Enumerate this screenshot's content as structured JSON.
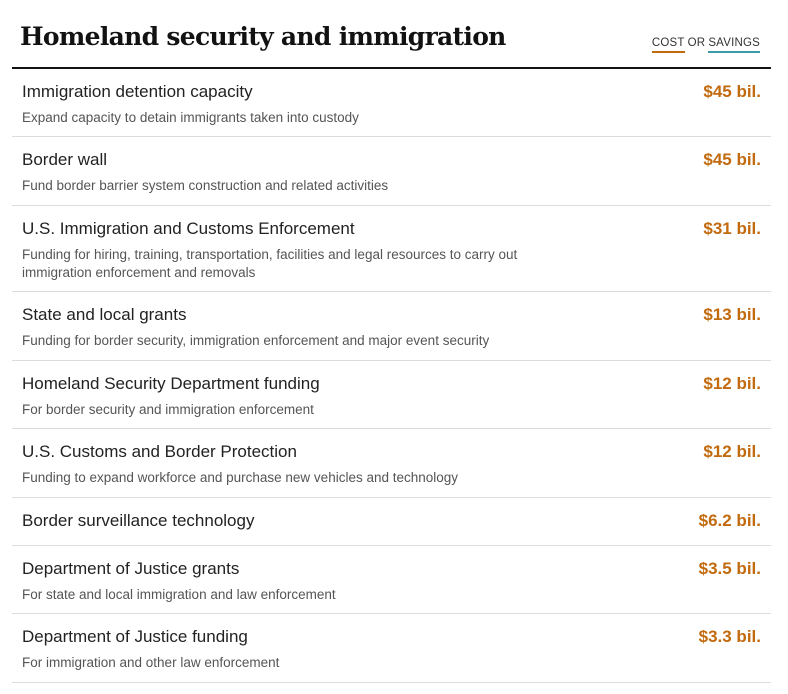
{
  "header": {
    "title": "Homeland security and immigration",
    "legend": {
      "cost_label": "COST",
      "or_label": "OR",
      "savings_label": "SAVINGS",
      "cost_color": "#c26a0e",
      "savings_color": "#3a9aa8"
    }
  },
  "colors": {
    "amount": "#c26a0e"
  },
  "items": [
    {
      "name": "Immigration detention capacity",
      "description": "Expand capacity to detain immigrants taken into custody",
      "amount": "$45 bil."
    },
    {
      "name": "Border wall",
      "description": "Fund border barrier system construction and related activities",
      "amount": "$45 bil."
    },
    {
      "name": "U.S. Immigration and Customs Enforcement",
      "description": "Funding for hiring, training, transportation, facilities and legal resources to carry out immigration enforcement and removals",
      "amount": "$31 bil."
    },
    {
      "name": "State and local grants",
      "description": "Funding for border security, immigration enforcement and major event security",
      "amount": "$13 bil."
    },
    {
      "name": "Homeland Security Department funding",
      "description": "For border security and immigration enforcement",
      "amount": "$12 bil."
    },
    {
      "name": "U.S. Customs and Border Protection",
      "description": "Funding to expand workforce and purchase new vehicles and technology",
      "amount": "$12 bil."
    },
    {
      "name": "Border surveillance technology",
      "description": "",
      "amount": "$6.2 bil."
    },
    {
      "name": "Department of Justice grants",
      "description": "For state and local immigration and law enforcement",
      "amount": "$3.5 bil."
    },
    {
      "name": "Department of Justice funding",
      "description": "For immigration and other law enforcement",
      "amount": "$3.3 bil."
    }
  ]
}
